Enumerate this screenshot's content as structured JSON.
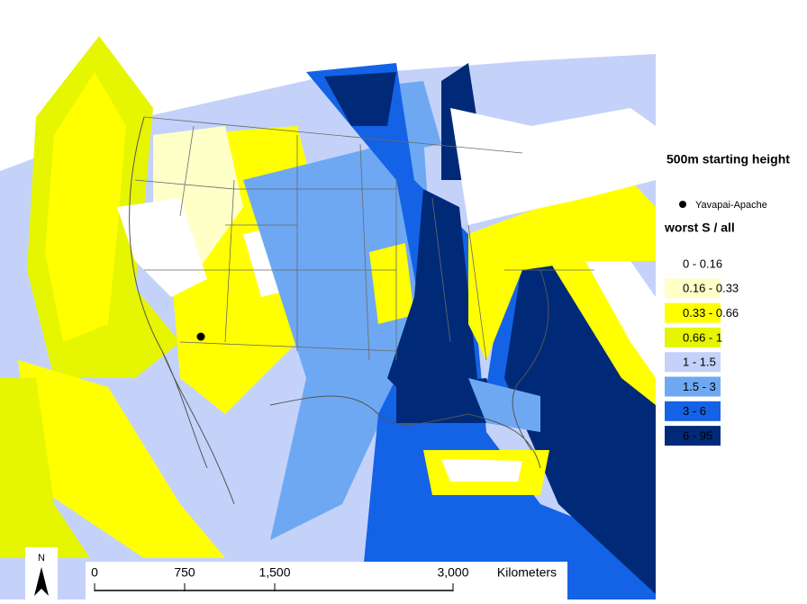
{
  "legend": {
    "title": "500m starting height",
    "site": "Yavapai-Apache",
    "subtitle": "worst S / all",
    "classes": [
      {
        "label": "0 - 0.16",
        "color": "#ffffff"
      },
      {
        "label": "0.16 - 0.33",
        "color": "#ffffc8"
      },
      {
        "label": "0.33 - 0.66",
        "color": "#ffff00"
      },
      {
        "label": "0.66 - 1",
        "color": "#e6f500"
      },
      {
        "label": "1 - 1.5",
        "color": "#c4d2fa"
      },
      {
        "label": "1.5 - 3",
        "color": "#6ea8f2"
      },
      {
        "label": "3 - 6",
        "color": "#1462e6"
      },
      {
        "label": "6 - 95",
        "color": "#002a78"
      }
    ]
  },
  "scale_bar": {
    "labels": [
      "0",
      "750",
      "1,500",
      "3,000"
    ],
    "unit": "Kilometers"
  },
  "north_arrow": "N"
}
